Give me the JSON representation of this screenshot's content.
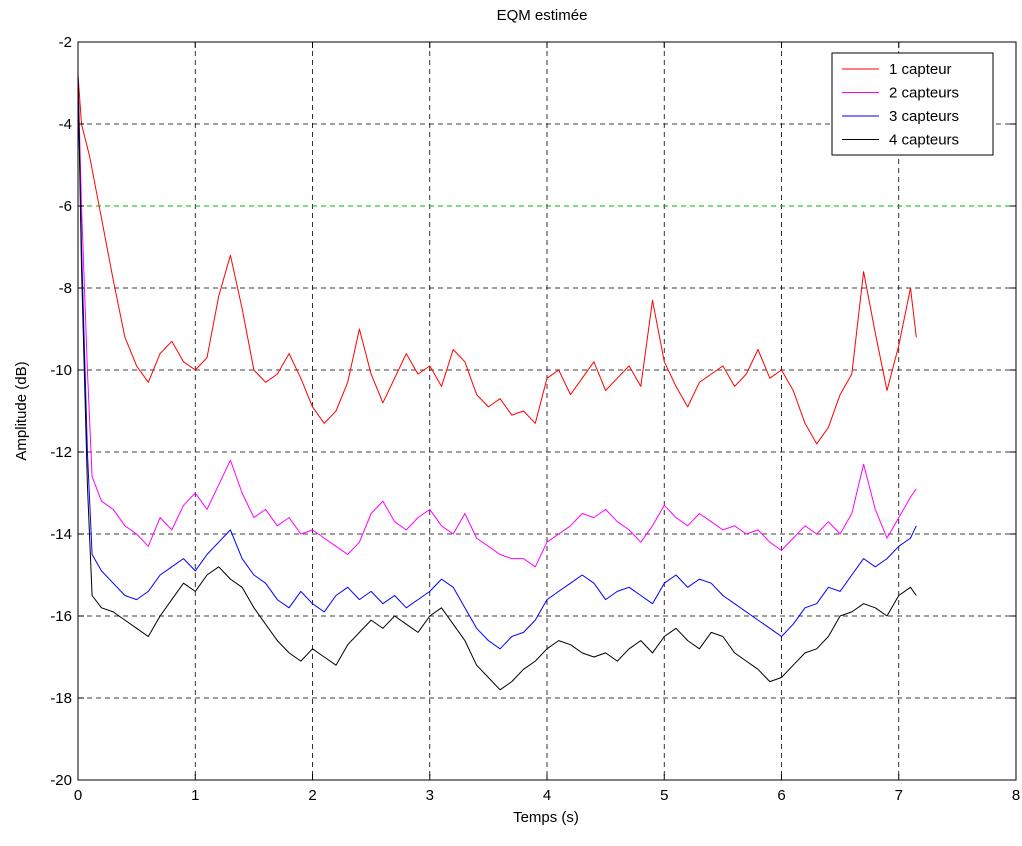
{
  "chart_data": {
    "type": "line",
    "title": "EQM estimée",
    "xlabel": "Temps (s)",
    "ylabel": "Amplitude (dB)",
    "xlim": [
      0,
      8
    ],
    "ylim": [
      -20,
      -2
    ],
    "xticks": [
      0,
      1,
      2,
      3,
      4,
      5,
      6,
      7,
      8
    ],
    "yticks": [
      -2,
      -4,
      -6,
      -8,
      -10,
      -12,
      -14,
      -16,
      -18,
      -20
    ],
    "grid": true,
    "legend_position": "top-right",
    "reference_line": {
      "y": -6,
      "color": "#00b000",
      "style": "dashed"
    },
    "series": [
      {
        "name": "1 capteur",
        "color": "#ff0000",
        "x": [
          0,
          0.03,
          0.1,
          0.2,
          0.3,
          0.4,
          0.5,
          0.6,
          0.7,
          0.8,
          0.9,
          1.0,
          1.1,
          1.2,
          1.3,
          1.4,
          1.5,
          1.6,
          1.7,
          1.8,
          1.9,
          2.0,
          2.1,
          2.2,
          2.3,
          2.4,
          2.5,
          2.6,
          2.7,
          2.8,
          2.9,
          3.0,
          3.1,
          3.2,
          3.3,
          3.4,
          3.5,
          3.6,
          3.7,
          3.8,
          3.9,
          4.0,
          4.1,
          4.2,
          4.3,
          4.4,
          4.5,
          4.6,
          4.7,
          4.8,
          4.9,
          5.0,
          5.1,
          5.2,
          5.3,
          5.4,
          5.5,
          5.6,
          5.7,
          5.8,
          5.9,
          6.0,
          6.1,
          6.2,
          6.3,
          6.4,
          6.5,
          6.6,
          6.7,
          6.8,
          6.9,
          7.0,
          7.1,
          7.15
        ],
        "y": [
          -2.8,
          -4.0,
          -4.8,
          -6.3,
          -7.8,
          -9.2,
          -9.9,
          -10.3,
          -9.6,
          -9.3,
          -9.8,
          -10.0,
          -9.7,
          -8.2,
          -7.2,
          -8.5,
          -10.0,
          -10.3,
          -10.1,
          -9.6,
          -10.2,
          -10.9,
          -11.3,
          -11.0,
          -10.3,
          -9.0,
          -10.1,
          -10.8,
          -10.2,
          -9.6,
          -10.1,
          -9.9,
          -10.4,
          -9.5,
          -9.8,
          -10.6,
          -10.9,
          -10.7,
          -11.1,
          -11.0,
          -11.3,
          -10.2,
          -10.0,
          -10.6,
          -10.2,
          -9.8,
          -10.5,
          -10.2,
          -9.9,
          -10.4,
          -8.3,
          -9.8,
          -10.4,
          -10.9,
          -10.3,
          -10.1,
          -9.9,
          -10.4,
          -10.1,
          -9.5,
          -10.2,
          -10.0,
          -10.5,
          -11.3,
          -11.8,
          -11.4,
          -10.6,
          -10.1,
          -7.6,
          -9.1,
          -10.5,
          -9.4,
          -8.0,
          -9.2
        ]
      },
      {
        "name": "2 capteurs",
        "color": "#ff00ff",
        "x": [
          0,
          0.03,
          0.08,
          0.12,
          0.2,
          0.3,
          0.4,
          0.5,
          0.6,
          0.7,
          0.8,
          0.9,
          1.0,
          1.1,
          1.2,
          1.3,
          1.4,
          1.5,
          1.6,
          1.7,
          1.8,
          1.9,
          2.0,
          2.1,
          2.2,
          2.3,
          2.4,
          2.5,
          2.6,
          2.7,
          2.8,
          2.9,
          3.0,
          3.1,
          3.2,
          3.3,
          3.4,
          3.5,
          3.6,
          3.7,
          3.8,
          3.9,
          4.0,
          4.1,
          4.2,
          4.3,
          4.4,
          4.5,
          4.6,
          4.7,
          4.8,
          4.9,
          5.0,
          5.1,
          5.2,
          5.3,
          5.4,
          5.5,
          5.6,
          5.7,
          5.8,
          5.9,
          6.0,
          6.1,
          6.2,
          6.3,
          6.4,
          6.5,
          6.6,
          6.7,
          6.8,
          6.9,
          7.0,
          7.1,
          7.15
        ],
        "y": [
          -2.8,
          -6.0,
          -10.0,
          -12.6,
          -13.2,
          -13.4,
          -13.8,
          -14.0,
          -14.3,
          -13.6,
          -13.9,
          -13.3,
          -13.0,
          -13.4,
          -12.8,
          -12.2,
          -13.0,
          -13.6,
          -13.4,
          -13.8,
          -13.6,
          -14.0,
          -13.9,
          -14.1,
          -14.3,
          -14.5,
          -14.2,
          -13.5,
          -13.2,
          -13.7,
          -13.9,
          -13.6,
          -13.4,
          -13.8,
          -14.0,
          -13.5,
          -14.1,
          -14.3,
          -14.5,
          -14.6,
          -14.6,
          -14.8,
          -14.2,
          -14.0,
          -13.8,
          -13.5,
          -13.6,
          -13.4,
          -13.7,
          -13.9,
          -14.2,
          -13.8,
          -13.3,
          -13.6,
          -13.8,
          -13.5,
          -13.7,
          -13.9,
          -13.8,
          -14.0,
          -13.9,
          -14.2,
          -14.4,
          -14.1,
          -13.8,
          -14.0,
          -13.7,
          -14.0,
          -13.5,
          -12.3,
          -13.4,
          -14.1,
          -13.6,
          -13.1,
          -12.9
        ]
      },
      {
        "name": "3 capteurs",
        "color": "#0000ff",
        "x": [
          0,
          0.03,
          0.08,
          0.12,
          0.2,
          0.3,
          0.4,
          0.5,
          0.6,
          0.7,
          0.8,
          0.9,
          1.0,
          1.1,
          1.2,
          1.3,
          1.4,
          1.5,
          1.6,
          1.7,
          1.8,
          1.9,
          2.0,
          2.1,
          2.2,
          2.3,
          2.4,
          2.5,
          2.6,
          2.7,
          2.8,
          2.9,
          3.0,
          3.1,
          3.2,
          3.3,
          3.4,
          3.5,
          3.6,
          3.7,
          3.8,
          3.9,
          4.0,
          4.1,
          4.2,
          4.3,
          4.4,
          4.5,
          4.6,
          4.7,
          4.8,
          4.9,
          5.0,
          5.1,
          5.2,
          5.3,
          5.4,
          5.5,
          5.6,
          5.7,
          5.8,
          5.9,
          6.0,
          6.1,
          6.2,
          6.3,
          6.4,
          6.5,
          6.6,
          6.7,
          6.8,
          6.9,
          7.0,
          7.1,
          7.15
        ],
        "y": [
          -2.8,
          -7.0,
          -12.0,
          -14.5,
          -14.9,
          -15.2,
          -15.5,
          -15.6,
          -15.4,
          -15.0,
          -14.8,
          -14.6,
          -14.9,
          -14.5,
          -14.2,
          -13.9,
          -14.6,
          -15.0,
          -15.2,
          -15.6,
          -15.8,
          -15.4,
          -15.7,
          -15.9,
          -15.5,
          -15.3,
          -15.6,
          -15.4,
          -15.7,
          -15.5,
          -15.8,
          -15.6,
          -15.4,
          -15.1,
          -15.3,
          -15.8,
          -16.3,
          -16.6,
          -16.8,
          -16.5,
          -16.4,
          -16.1,
          -15.6,
          -15.4,
          -15.2,
          -15.0,
          -15.2,
          -15.6,
          -15.4,
          -15.3,
          -15.5,
          -15.7,
          -15.2,
          -15.0,
          -15.3,
          -15.1,
          -15.2,
          -15.5,
          -15.7,
          -15.9,
          -16.1,
          -16.3,
          -16.5,
          -16.2,
          -15.8,
          -15.7,
          -15.3,
          -15.4,
          -15.0,
          -14.6,
          -14.8,
          -14.6,
          -14.3,
          -14.1,
          -13.8
        ]
      },
      {
        "name": "4 capteurs",
        "color": "#000000",
        "x": [
          0,
          0.03,
          0.08,
          0.12,
          0.2,
          0.3,
          0.4,
          0.5,
          0.6,
          0.7,
          0.8,
          0.9,
          1.0,
          1.1,
          1.2,
          1.3,
          1.4,
          1.5,
          1.6,
          1.7,
          1.8,
          1.9,
          2.0,
          2.1,
          2.2,
          2.3,
          2.4,
          2.5,
          2.6,
          2.7,
          2.8,
          2.9,
          3.0,
          3.1,
          3.2,
          3.3,
          3.4,
          3.5,
          3.6,
          3.7,
          3.8,
          3.9,
          4.0,
          4.1,
          4.2,
          4.3,
          4.4,
          4.5,
          4.6,
          4.7,
          4.8,
          4.9,
          5.0,
          5.1,
          5.2,
          5.3,
          5.4,
          5.5,
          5.6,
          5.7,
          5.8,
          5.9,
          6.0,
          6.1,
          6.2,
          6.3,
          6.4,
          6.5,
          6.6,
          6.7,
          6.8,
          6.9,
          7.0,
          7.1,
          7.15
        ],
        "y": [
          -2.8,
          -7.5,
          -12.8,
          -15.5,
          -15.8,
          -15.9,
          -16.1,
          -16.3,
          -16.5,
          -16.0,
          -15.6,
          -15.2,
          -15.4,
          -15.0,
          -14.8,
          -15.1,
          -15.3,
          -15.8,
          -16.2,
          -16.6,
          -16.9,
          -17.1,
          -16.8,
          -17.0,
          -17.2,
          -16.7,
          -16.4,
          -16.1,
          -16.3,
          -16.0,
          -16.2,
          -16.4,
          -16.0,
          -15.8,
          -16.2,
          -16.6,
          -17.2,
          -17.5,
          -17.8,
          -17.6,
          -17.3,
          -17.1,
          -16.8,
          -16.6,
          -16.7,
          -16.9,
          -17.0,
          -16.9,
          -17.1,
          -16.8,
          -16.6,
          -16.9,
          -16.5,
          -16.3,
          -16.6,
          -16.8,
          -16.4,
          -16.5,
          -16.9,
          -17.1,
          -17.3,
          -17.6,
          -17.5,
          -17.2,
          -16.9,
          -16.8,
          -16.5,
          -16.0,
          -15.9,
          -15.7,
          -15.8,
          -16.0,
          -15.5,
          -15.3,
          -15.5
        ]
      }
    ]
  }
}
